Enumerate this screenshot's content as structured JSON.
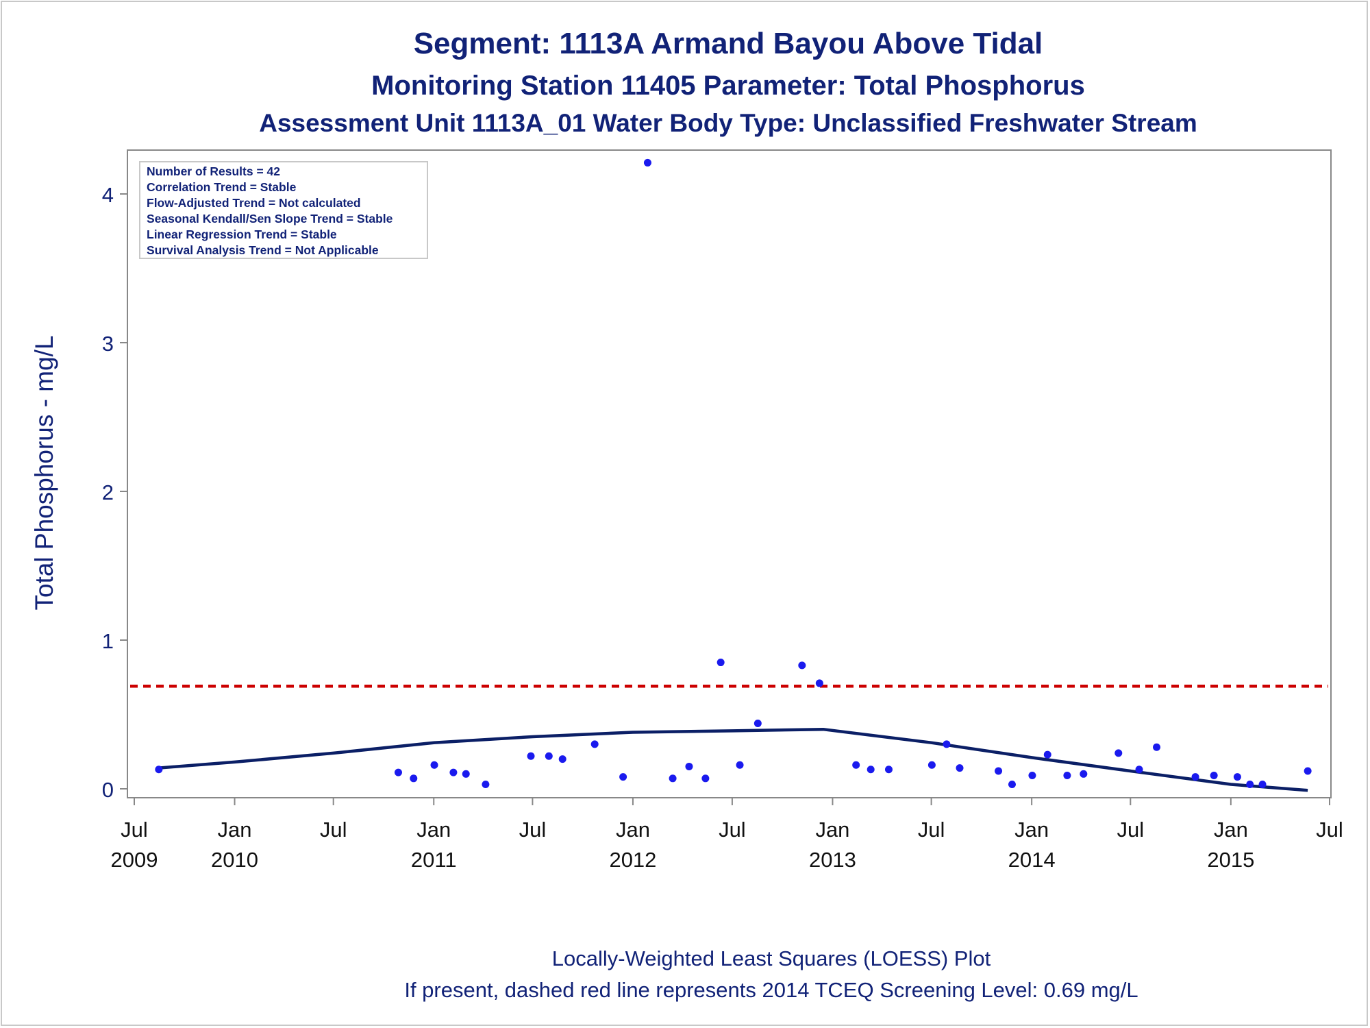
{
  "titles": {
    "line1": "Segment: 1113A  Armand Bayou Above Tidal",
    "line2": "Monitoring Station 11405 Parameter: Total Phosphorus",
    "line3": "Assessment Unit 1113A_01   Water Body Type: Unclassified Freshwater Stream"
  },
  "info_box": {
    "lines": [
      "Number of Results = 42",
      "Correlation Trend = Stable",
      "Flow-Adjusted Trend = Not calculated",
      "Seasonal Kendall/Sen Slope Trend = Stable",
      "Linear Regression Trend = Stable",
      "Survival Analysis Trend = Not Applicable"
    ]
  },
  "footer": {
    "line1": "Locally-Weighted Least Squares (LOESS) Plot",
    "line2": "If present, dashed red line represents 2014 TCEQ Screening Level: 0.69 mg/L"
  },
  "colors": {
    "text": "#112277",
    "points": "#1a1aee",
    "loess": "#0b1f66",
    "screening": "#cc0000",
    "axes": "#888888"
  },
  "chart_data": {
    "type": "scatter",
    "title": "Segment: 1113A  Armand Bayou Above Tidal",
    "ylabel": "Total Phosphorus - mg/L",
    "xlabel": "",
    "x_is_date": true,
    "xlim": [
      "2009-07-01",
      "2015-07-01"
    ],
    "ylim": [
      0,
      4.3
    ],
    "y_ticks": [
      0,
      1,
      2,
      3,
      4
    ],
    "x_ticks": [
      {
        "date": "2009-07-01",
        "month": "Jul",
        "year": "2009"
      },
      {
        "date": "2010-01-01",
        "month": "Jan",
        "year": "2010"
      },
      {
        "date": "2010-07-01",
        "month": "Jul",
        "year": ""
      },
      {
        "date": "2011-01-01",
        "month": "Jan",
        "year": "2011"
      },
      {
        "date": "2011-07-01",
        "month": "Jul",
        "year": ""
      },
      {
        "date": "2012-01-01",
        "month": "Jan",
        "year": "2012"
      },
      {
        "date": "2012-07-01",
        "month": "Jul",
        "year": ""
      },
      {
        "date": "2013-01-01",
        "month": "Jan",
        "year": "2013"
      },
      {
        "date": "2013-07-01",
        "month": "Jul",
        "year": ""
      },
      {
        "date": "2014-01-01",
        "month": "Jan",
        "year": "2014"
      },
      {
        "date": "2014-07-01",
        "month": "Jul",
        "year": ""
      },
      {
        "date": "2015-01-01",
        "month": "Jan",
        "year": "2015"
      },
      {
        "date": "2015-07-01",
        "month": "Jul",
        "year": ""
      }
    ],
    "grid": false,
    "screening_level": 0.69,
    "series": [
      {
        "kind": "points",
        "points": [
          {
            "x": "2009-08-15",
            "y": 0.13
          },
          {
            "x": "2010-10-28",
            "y": 0.11
          },
          {
            "x": "2010-11-25",
            "y": 0.07
          },
          {
            "x": "2011-01-02",
            "y": 0.16
          },
          {
            "x": "2011-02-06",
            "y": 0.11
          },
          {
            "x": "2011-03-01",
            "y": 0.1
          },
          {
            "x": "2011-04-06",
            "y": 0.03
          },
          {
            "x": "2011-06-28",
            "y": 0.22
          },
          {
            "x": "2011-07-31",
            "y": 0.22
          },
          {
            "x": "2011-08-25",
            "y": 0.2
          },
          {
            "x": "2011-10-23",
            "y": 0.3
          },
          {
            "x": "2011-12-14",
            "y": 0.08
          },
          {
            "x": "2012-01-28",
            "y": 4.21
          },
          {
            "x": "2012-03-14",
            "y": 0.07
          },
          {
            "x": "2012-04-13",
            "y": 0.15
          },
          {
            "x": "2012-05-13",
            "y": 0.07
          },
          {
            "x": "2012-06-10",
            "y": 0.85
          },
          {
            "x": "2012-07-15",
            "y": 0.16
          },
          {
            "x": "2012-08-17",
            "y": 0.44
          },
          {
            "x": "2012-11-06",
            "y": 0.83
          },
          {
            "x": "2012-12-08",
            "y": 0.71
          },
          {
            "x": "2013-02-13",
            "y": 0.16
          },
          {
            "x": "2013-03-12",
            "y": 0.13
          },
          {
            "x": "2013-04-14",
            "y": 0.13
          },
          {
            "x": "2013-07-02",
            "y": 0.16
          },
          {
            "x": "2013-07-29",
            "y": 0.3
          },
          {
            "x": "2013-08-22",
            "y": 0.14
          },
          {
            "x": "2013-11-01",
            "y": 0.12
          },
          {
            "x": "2013-11-26",
            "y": 0.03
          },
          {
            "x": "2014-01-02",
            "y": 0.09
          },
          {
            "x": "2014-01-30",
            "y": 0.23
          },
          {
            "x": "2014-03-07",
            "y": 0.09
          },
          {
            "x": "2014-04-06",
            "y": 0.1
          },
          {
            "x": "2014-06-09",
            "y": 0.24
          },
          {
            "x": "2014-07-17",
            "y": 0.13
          },
          {
            "x": "2014-08-18",
            "y": 0.28
          },
          {
            "x": "2014-10-28",
            "y": 0.08
          },
          {
            "x": "2014-12-01",
            "y": 0.09
          },
          {
            "x": "2015-01-13",
            "y": 0.08
          },
          {
            "x": "2015-02-05",
            "y": 0.03
          },
          {
            "x": "2015-02-28",
            "y": 0.03
          },
          {
            "x": "2015-05-22",
            "y": 0.12
          }
        ]
      },
      {
        "kind": "loess",
        "points": [
          {
            "x": "2009-08-15",
            "y": 0.14
          },
          {
            "x": "2010-01-01",
            "y": 0.18
          },
          {
            "x": "2010-07-01",
            "y": 0.24
          },
          {
            "x": "2011-01-01",
            "y": 0.31
          },
          {
            "x": "2011-07-01",
            "y": 0.35
          },
          {
            "x": "2012-01-01",
            "y": 0.38
          },
          {
            "x": "2012-07-01",
            "y": 0.39
          },
          {
            "x": "2012-12-15",
            "y": 0.4
          },
          {
            "x": "2013-07-01",
            "y": 0.31
          },
          {
            "x": "2014-01-01",
            "y": 0.21
          },
          {
            "x": "2014-07-01",
            "y": 0.12
          },
          {
            "x": "2015-01-01",
            "y": 0.03
          },
          {
            "x": "2015-05-22",
            "y": -0.01
          }
        ]
      }
    ]
  }
}
